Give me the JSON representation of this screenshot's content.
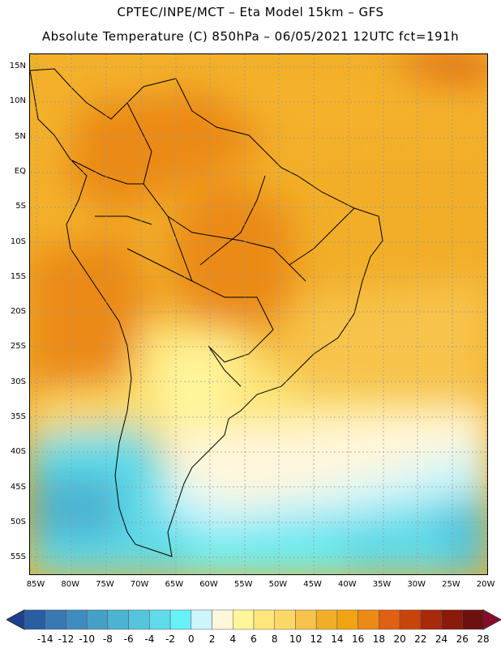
{
  "header": {
    "title_line1": "CPTEC/INPE/MCT –  Eta Model 15km – GFS",
    "title_line2": "Absolute Temperature (C) 850hPa – 06/05/2021 12UTC fct=191h"
  },
  "map": {
    "latitude_labels": [
      "15N",
      "10N",
      "5N",
      "EQ",
      "5S",
      "10S",
      "15S",
      "20S",
      "25S",
      "30S",
      "35S",
      "40S",
      "45S",
      "50S",
      "55S"
    ],
    "longitude_labels": [
      "85W",
      "80W",
      "75W",
      "70W",
      "65W",
      "60W",
      "55W",
      "50W",
      "45W",
      "40W",
      "35W",
      "30W",
      "25W",
      "20W"
    ],
    "region": "South America",
    "variable": "Absolute Temperature 850hPa"
  },
  "colorbar": {
    "labels": [
      "-14",
      "-12",
      "-10",
      "-8",
      "-6",
      "-4",
      "-2",
      "0",
      "2",
      "4",
      "6",
      "8",
      "10",
      "12",
      "14",
      "16",
      "18",
      "20",
      "22",
      "24",
      "26",
      "28"
    ],
    "colors": [
      "#1c3f8f",
      "#2a5ea3",
      "#3a78b4",
      "#3f8cc0",
      "#45a0c8",
      "#4cb3d2",
      "#55c5dd",
      "#5fdbe9",
      "#66f2f7",
      "#cdf5fb",
      "#fff7dc",
      "#fff59b",
      "#fde67a",
      "#fbd866",
      "#f7c34c",
      "#f3ae27",
      "#f1a411",
      "#eb8a16",
      "#e05f10",
      "#c9440a",
      "#a82a0a",
      "#8a1a0a",
      "#6e1010",
      "#8b0a2a"
    ]
  }
}
